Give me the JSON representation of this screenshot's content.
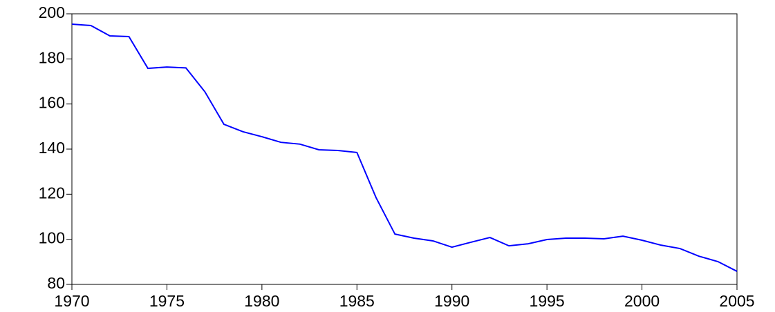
{
  "chart_data": {
    "type": "line",
    "x": [
      1970,
      1971,
      1972,
      1973,
      1974,
      1975,
      1976,
      1977,
      1978,
      1979,
      1980,
      1981,
      1982,
      1983,
      1984,
      1985,
      1986,
      1987,
      1988,
      1989,
      1990,
      1991,
      1992,
      1993,
      1994,
      1995,
      1996,
      1997,
      1998,
      1999,
      2000,
      2001,
      2002,
      2003,
      2004,
      2005
    ],
    "series": [
      {
        "color": "#0000ff",
        "values": [
          195.4,
          194.8,
          190.2,
          189.9,
          175.8,
          176.4,
          176,
          165.4,
          151,
          147.7,
          145.5,
          143,
          142.2,
          139.7,
          139.4,
          138.5,
          118.6,
          102.3,
          100.5,
          99.3,
          96.5,
          98.7,
          100.8,
          97.1,
          98,
          99.9,
          100.5,
          100.5,
          100.2,
          101.4,
          99.6,
          97.4,
          95.9,
          92.5,
          90.1,
          85.8
        ]
      }
    ],
    "xlim": [
      1970,
      2005
    ],
    "xticks": [
      1970,
      1975,
      1980,
      1985,
      1990,
      1995,
      2000,
      2005
    ],
    "ylim": [
      80,
      200
    ],
    "yticks": [
      80,
      100,
      120,
      140,
      160,
      180,
      200
    ]
  }
}
